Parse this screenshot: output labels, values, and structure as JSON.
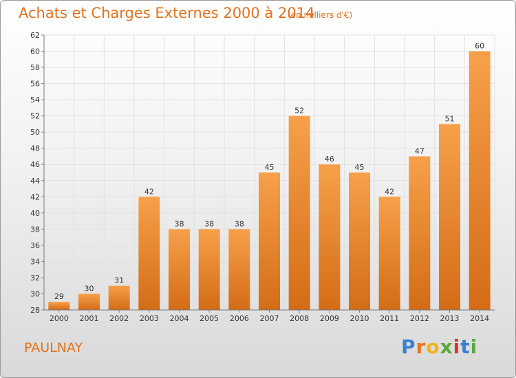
{
  "chart_data": {
    "type": "bar",
    "title": "Achats et Charges Externes 2000 à 2014",
    "subtitle": "(en milliers d'€)",
    "categories": [
      "2000",
      "2001",
      "2002",
      "2003",
      "2004",
      "2005",
      "2006",
      "2007",
      "2008",
      "2009",
      "2010",
      "2011",
      "2012",
      "2013",
      "2014"
    ],
    "values": [
      29,
      30,
      31,
      42,
      38,
      38,
      38,
      45,
      52,
      46,
      45,
      42,
      47,
      51,
      60
    ],
    "ylim": [
      28,
      62
    ],
    "yticks": [
      28,
      30,
      32,
      34,
      36,
      38,
      40,
      42,
      44,
      46,
      48,
      50,
      52,
      54,
      56,
      58,
      60,
      62
    ],
    "xlabel": "",
    "ylabel": "",
    "grid": true,
    "bar_color": "#f08a2c"
  },
  "location": "PAULNAY",
  "brand": {
    "letters": [
      "P",
      "r",
      "o",
      "x",
      "i",
      "t",
      "i"
    ],
    "colors": [
      "#3b7fd0",
      "#e8741e",
      "#f2b31c",
      "#5aa83a",
      "#d9332b",
      "#3b7fd0",
      "#5aa83a"
    ]
  }
}
